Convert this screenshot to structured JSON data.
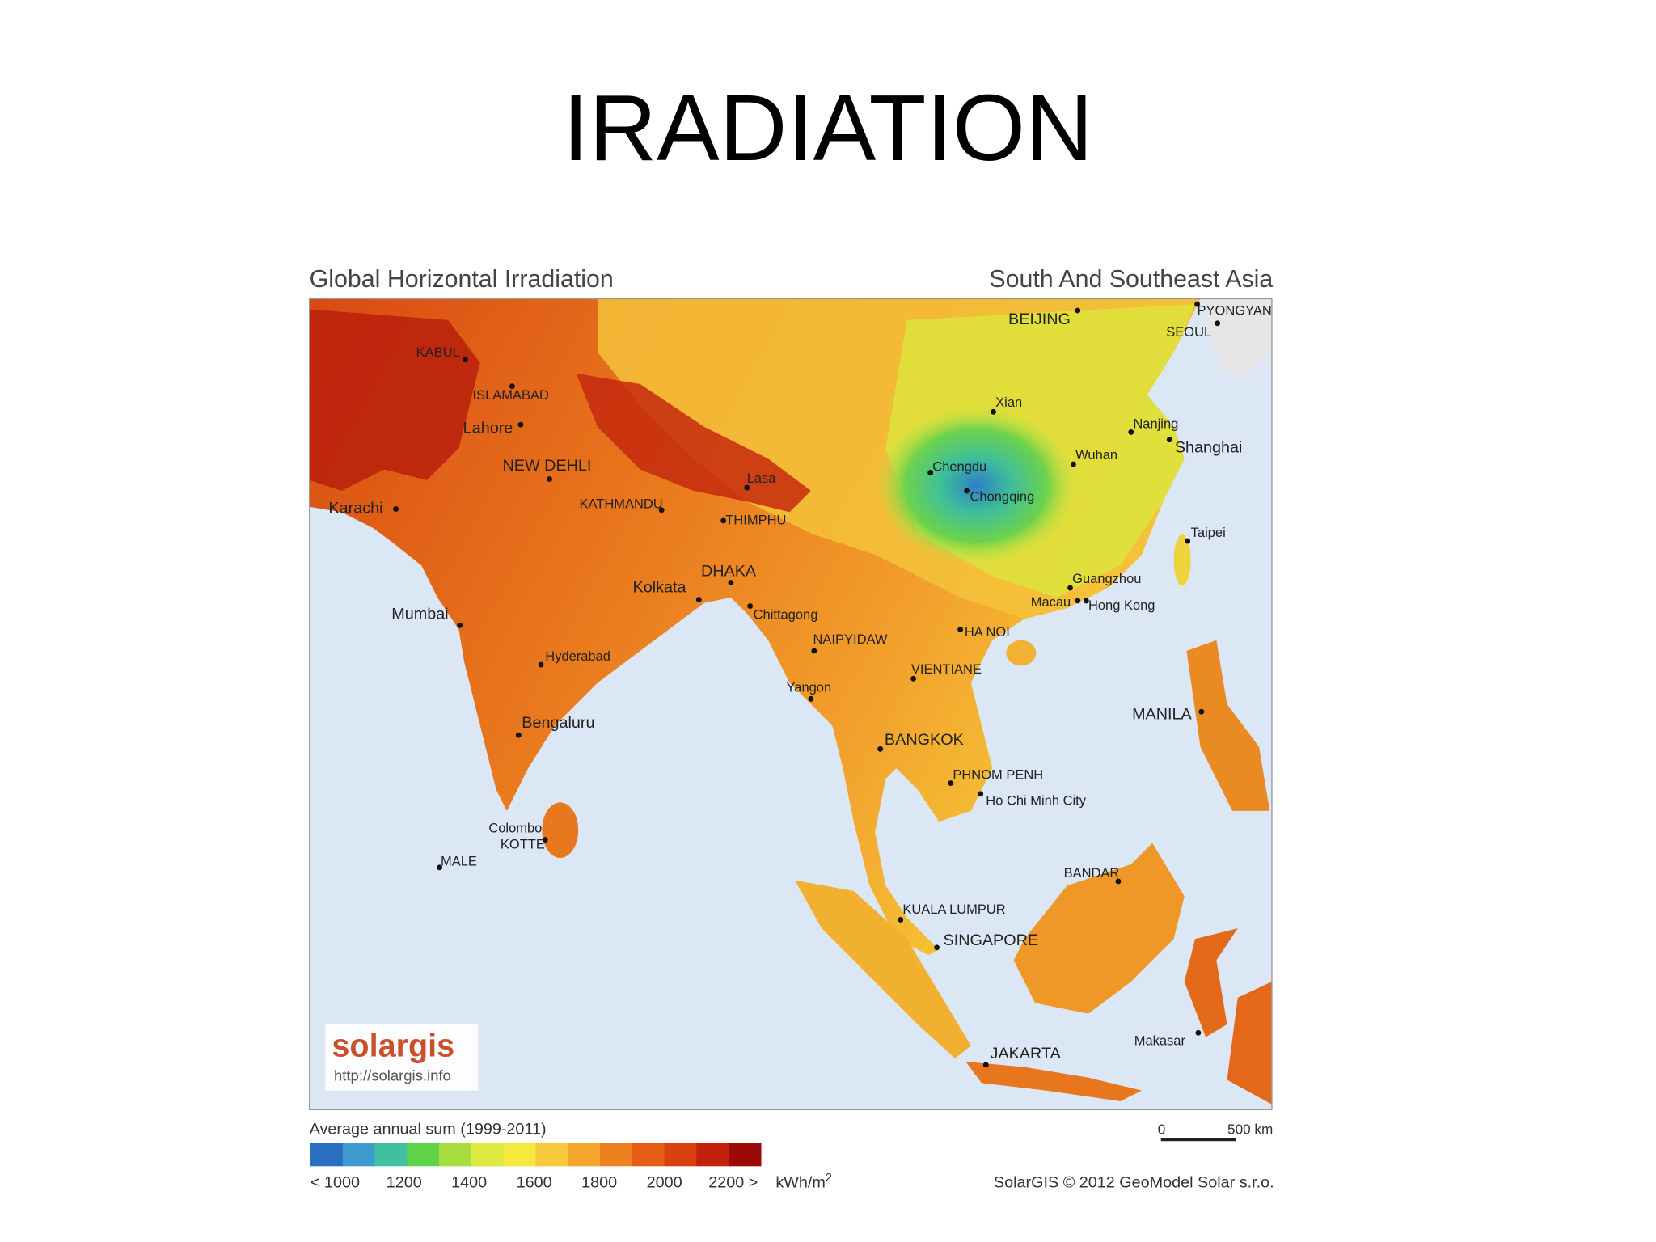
{
  "title": "IRADIATION",
  "map": {
    "header_left": "Global Horizontal Irradiation",
    "header_right": "South And Southeast Asia",
    "cities": [
      "BEIJING",
      "PYONGYANG",
      "SEOUL",
      "KABUL",
      "ISLAMABAD",
      "Lahore",
      "NEW DEHLI",
      "Karachi",
      "KATHMANDU",
      "Lasa",
      "THIMPHU",
      "Xian",
      "Nanjing",
      "Shanghai",
      "Chengdu",
      "Wuhan",
      "Chongqing",
      "Taipei",
      "Guangzhou",
      "Macau",
      "Hong Kong",
      "HA NOI",
      "DHAKA",
      "Kolkata",
      "Chittagong",
      "Mumbai",
      "NAIPYIDAW",
      "VIENTIANE",
      "Hyderabad",
      "Yangon",
      "MANILA",
      "Bengaluru",
      "BANGKOK",
      "PHNOM PENH",
      "Ho Chi Minh City",
      "Colombo",
      "KOTTE",
      "MALE",
      "BANDAR",
      "KUALA LUMPUR",
      "SINGAPORE",
      "Makasar",
      "JAKARTA"
    ],
    "logo": "solargis",
    "url": "http://solargis.info"
  },
  "legend": {
    "title": "Average annual sum (1999-2011)",
    "colors": [
      "#2b6fc0",
      "#3d9bd0",
      "#3fc0a0",
      "#5fd24a",
      "#a6de40",
      "#dde840",
      "#f7e840",
      "#f6c93a",
      "#f3a52c",
      "#ee8020",
      "#e65e15",
      "#d8400f",
      "#c2220c",
      "#9c0a08"
    ],
    "labels": [
      "< 1000",
      "1200",
      "1400",
      "1600",
      "1800",
      "2000",
      "2200 >"
    ],
    "unit": "kWh/m",
    "unit_exponent": "2"
  },
  "scale_bar": {
    "start": "0",
    "end": "500 km"
  },
  "credit": "SolarGIS © 2012 GeoModel Solar s.r.o."
}
